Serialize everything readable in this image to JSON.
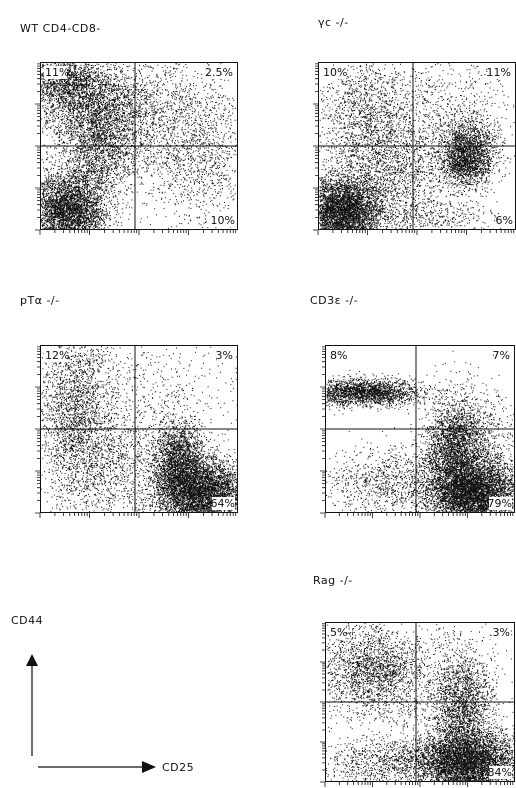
{
  "panels": [
    {
      "id": "wt",
      "title": "WT CD4-CD8-",
      "quadrants": {
        "ul": "11%",
        "ur": "2.5%",
        "lr": "10%"
      }
    },
    {
      "id": "gc",
      "title": "γc -/-",
      "quadrants": {
        "ul": "10%",
        "ur": "11%",
        "lr": "6%"
      }
    },
    {
      "id": "pta",
      "title": "pTα -/-",
      "quadrants": {
        "ul": "12%",
        "ur": "3%",
        "lr": "64%"
      }
    },
    {
      "id": "cd3e",
      "title": "CD3ε -/-",
      "quadrants": {
        "ul": "8%",
        "ur": "7%",
        "lr": "79%"
      }
    },
    {
      "id": "rag",
      "title": "Rag -/-",
      "quadrants": {
        "ul": "5%",
        "ur": ".3%",
        "lr": "84%"
      }
    }
  ],
  "axes": {
    "y_label": "CD44",
    "x_label": "CD25"
  }
}
